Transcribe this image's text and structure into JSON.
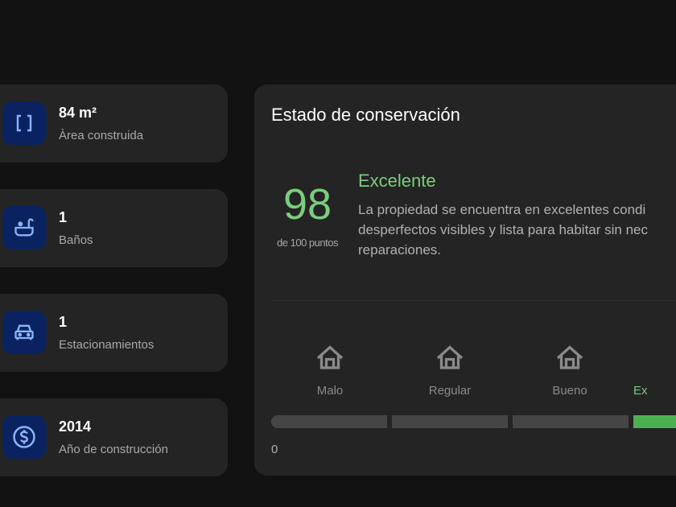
{
  "features": [
    {
      "value": "84 m²",
      "label": "Àrea construida",
      "icon": "brackets-icon"
    },
    {
      "value": "1",
      "label": "Baños",
      "icon": "bathtub-icon"
    },
    {
      "value": "1",
      "label": "Estacionamientos",
      "icon": "car-icon"
    },
    {
      "value": "2014",
      "label": "Año de construcción",
      "icon": "dollar-icon"
    }
  ],
  "condition": {
    "title": "Estado de conservación",
    "score": "98",
    "score_sub": "de 100 puntos",
    "rating": "Excelente",
    "description_lines": [
      "La propiedad se encuentra en excelentes condi",
      "desperfectos visibles y lista para habitar sin nec",
      "reparaciones."
    ],
    "levels": [
      "Malo",
      "Regular",
      "Bueno",
      "Ex"
    ],
    "active_level": 3,
    "scale_min": "0"
  },
  "colors": {
    "accent_green": "#7ccc7f",
    "bar_active": "#4caf50",
    "icon_bg": "#0b2260",
    "icon_fg": "#8ab4f8"
  }
}
